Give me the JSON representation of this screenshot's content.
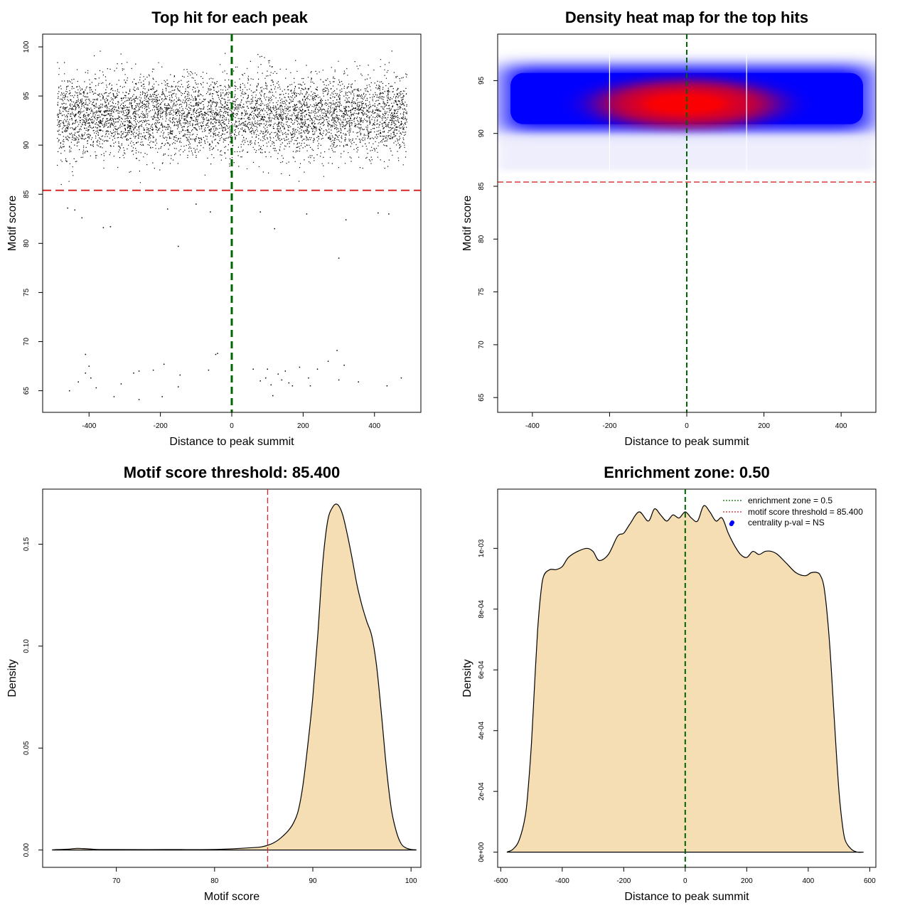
{
  "colors": {
    "threshold_red": "#d62728",
    "zone_green": "#006400",
    "fill_wheat": "#f5deb3",
    "heat_blue": "#0000ff",
    "heat_red": "#ff0000",
    "point_blue": "#0000ff",
    "axis": "#000000"
  },
  "chart_data": [
    {
      "type": "scatter",
      "title": "Top hit for each peak",
      "xlabel": "Distance to peak summit",
      "ylabel": "Motif score",
      "xlim": [
        -530,
        530
      ],
      "ylim": [
        62.8,
        101.3
      ],
      "xticks": [
        -400,
        -200,
        0,
        200,
        400
      ],
      "xtick_labels": [
        "-400",
        "-200",
        "0",
        "200",
        "400"
      ],
      "yticks": [
        65,
        70,
        75,
        80,
        85,
        90,
        95,
        100
      ],
      "ytick_labels": [
        "65",
        "70",
        "75",
        "80",
        "85",
        "90",
        "95",
        "100"
      ],
      "threshold_y": 85.4,
      "zone_x": 0,
      "dense_band": {
        "x_range": [
          -490,
          490
        ],
        "y_center": 93,
        "y_sd": 2.0,
        "n": 18000
      },
      "sparse_points": [
        {
          "x": -460,
          "y": 83.6
        },
        {
          "x": -440,
          "y": 83.4
        },
        {
          "x": -420,
          "y": 82.6
        },
        {
          "x": -360,
          "y": 81.6
        },
        {
          "x": -340,
          "y": 81.7
        },
        {
          "x": -150,
          "y": 79.7
        },
        {
          "x": 300,
          "y": 78.5
        },
        {
          "x": -180,
          "y": 83.5
        },
        {
          "x": -100,
          "y": 84.0
        },
        {
          "x": 80,
          "y": 83.2
        },
        {
          "x": 120,
          "y": 81.5
        },
        {
          "x": 210,
          "y": 83.0
        },
        {
          "x": 320,
          "y": 82.4
        },
        {
          "x": 410,
          "y": 83.1
        },
        {
          "x": 440,
          "y": 83.0
        },
        {
          "x": -60,
          "y": 83.2
        },
        {
          "x": -410,
          "y": 68.7
        },
        {
          "x": -400,
          "y": 67.5
        },
        {
          "x": -395,
          "y": 66.3
        },
        {
          "x": -430,
          "y": 65.9
        },
        {
          "x": -410,
          "y": 66.8
        },
        {
          "x": -455,
          "y": 65.0
        },
        {
          "x": -380,
          "y": 65.3
        },
        {
          "x": -330,
          "y": 64.4
        },
        {
          "x": -310,
          "y": 65.7
        },
        {
          "x": -275,
          "y": 66.8
        },
        {
          "x": -260,
          "y": 67.0
        },
        {
          "x": -260,
          "y": 64.1
        },
        {
          "x": -220,
          "y": 67.1
        },
        {
          "x": -190,
          "y": 67.7
        },
        {
          "x": -195,
          "y": 64.4
        },
        {
          "x": -150,
          "y": 65.4
        },
        {
          "x": -145,
          "y": 66.6
        },
        {
          "x": -65,
          "y": 67.1
        },
        {
          "x": -45,
          "y": 68.7
        },
        {
          "x": -40,
          "y": 68.8
        },
        {
          "x": 60,
          "y": 67.2
        },
        {
          "x": 80,
          "y": 66.0
        },
        {
          "x": 95,
          "y": 66.3
        },
        {
          "x": 100,
          "y": 67.2
        },
        {
          "x": 110,
          "y": 65.6
        },
        {
          "x": 115,
          "y": 64.5
        },
        {
          "x": 130,
          "y": 66.7
        },
        {
          "x": 140,
          "y": 66.1
        },
        {
          "x": 150,
          "y": 67.0
        },
        {
          "x": 160,
          "y": 65.8
        },
        {
          "x": 170,
          "y": 65.5
        },
        {
          "x": 190,
          "y": 67.4
        },
        {
          "x": 215,
          "y": 66.3
        },
        {
          "x": 220,
          "y": 65.5
        },
        {
          "x": 240,
          "y": 67.2
        },
        {
          "x": 270,
          "y": 68.0
        },
        {
          "x": 295,
          "y": 69.1
        },
        {
          "x": 300,
          "y": 66.1
        },
        {
          "x": 315,
          "y": 67.6
        },
        {
          "x": 355,
          "y": 65.9
        },
        {
          "x": 435,
          "y": 65.5
        },
        {
          "x": 475,
          "y": 66.3
        }
      ]
    },
    {
      "type": "heatmap",
      "title": "Density heat map for the top hits",
      "xlabel": "Distance to peak summit",
      "ylabel": "Motif score",
      "xlim": [
        -490,
        490
      ],
      "ylim": [
        63.6,
        99.4
      ],
      "xticks": [
        -400,
        -200,
        0,
        200,
        400
      ],
      "xtick_labels": [
        "-400",
        "-200",
        "0",
        "200",
        "400"
      ],
      "yticks": [
        65,
        70,
        75,
        80,
        85,
        90,
        95
      ],
      "ytick_labels": [
        "65",
        "70",
        "75",
        "80",
        "85",
        "90",
        "95"
      ],
      "threshold_y": 85.4,
      "zone_x": 0,
      "blue_band": {
        "x_range": [
          -490,
          490
        ],
        "y_range": [
          89.8,
          96.8
        ]
      },
      "red_hotspot": {
        "x_center": 0,
        "x_halfwidth": 230,
        "y_center": 92.8,
        "y_halfwidth": 2.2
      },
      "white_lines_x": [
        -200,
        155
      ]
    },
    {
      "type": "area",
      "title": "Motif score threshold: 85.400",
      "xlabel": "Motif score",
      "ylabel": "Density",
      "xlim": [
        62.5,
        101.0
      ],
      "ylim": [
        -0.0085,
        0.177
      ],
      "xticks": [
        70,
        80,
        90,
        100
      ],
      "xtick_labels": [
        "70",
        "80",
        "90",
        "100"
      ],
      "yticks": [
        0.0,
        0.05,
        0.1,
        0.15
      ],
      "ytick_labels": [
        "0.00",
        "0.05",
        "0.10",
        "0.15"
      ],
      "threshold_x": 85.4,
      "x": [
        63.5,
        64,
        65,
        66,
        67,
        68,
        70,
        75,
        80,
        84,
        85,
        85.5,
        86,
        86.5,
        87,
        87.5,
        88,
        88.5,
        89,
        89.5,
        90,
        90.5,
        91,
        91.5,
        92,
        92.5,
        93,
        93.5,
        94,
        94.5,
        95,
        95.5,
        96,
        96.5,
        97,
        97.5,
        98,
        98.5,
        99,
        99.5,
        100,
        100.5
      ],
      "y": [
        0.0001,
        0.0002,
        0.0004,
        0.0008,
        0.0006,
        0.0003,
        0.0002,
        0.0002,
        0.0003,
        0.0012,
        0.0018,
        0.0025,
        0.0035,
        0.005,
        0.007,
        0.0095,
        0.013,
        0.019,
        0.032,
        0.052,
        0.075,
        0.105,
        0.14,
        0.161,
        0.168,
        0.1695,
        0.165,
        0.155,
        0.143,
        0.13,
        0.12,
        0.112,
        0.105,
        0.09,
        0.066,
        0.04,
        0.02,
        0.009,
        0.003,
        0.001,
        0.0003,
        0.0001
      ]
    },
    {
      "type": "area",
      "title": "Enrichment zone: 0.50",
      "xlabel": "Distance to peak summit",
      "ylabel": "Density",
      "xlim": [
        -610,
        620
      ],
      "ylim": [
        -5e-05,
        0.001195
      ],
      "xticks": [
        -600,
        -400,
        -200,
        0,
        200,
        400,
        600
      ],
      "xtick_labels": [
        "-600",
        "-400",
        "-200",
        "0",
        "200",
        "400",
        "600"
      ],
      "yticks": [
        0.0,
        0.0002,
        0.0004,
        0.0006,
        0.0008,
        0.001
      ],
      "ytick_labels": [
        "0e+00",
        "2e-04",
        "4e-04",
        "6e-04",
        "8e-04",
        "1e-03"
      ],
      "zone_x": 0,
      "centrality_point": {
        "x": 150,
        "y": 0.00108
      },
      "x": [
        -580,
        -560,
        -540,
        -520,
        -510,
        -500,
        -490,
        -480,
        -470,
        -460,
        -440,
        -420,
        -400,
        -380,
        -350,
        -320,
        -300,
        -280,
        -250,
        -220,
        -200,
        -180,
        -150,
        -120,
        -100,
        -80,
        -60,
        -40,
        -20,
        0,
        20,
        40,
        60,
        80,
        100,
        120,
        140,
        160,
        180,
        200,
        220,
        240,
        260,
        280,
        300,
        330,
        360,
        390,
        410,
        430,
        440,
        450,
        460,
        470,
        480,
        490,
        500,
        510,
        520,
        540,
        560,
        580
      ],
      "y": [
        0.0,
        1e-05,
        4e-05,
        0.00012,
        0.00022,
        0.00036,
        0.00055,
        0.00073,
        0.00085,
        0.00091,
        0.00093,
        0.00093,
        0.00094,
        0.00097,
        0.00099,
        0.001,
        0.00099,
        0.00096,
        0.00098,
        0.00104,
        0.00105,
        0.00108,
        0.00112,
        0.00109,
        0.00113,
        0.00111,
        0.00109,
        0.00111,
        0.0011,
        0.00112,
        0.0011,
        0.00109,
        0.00114,
        0.00112,
        0.00109,
        0.0011,
        0.00105,
        0.00101,
        0.00098,
        0.00097,
        0.00099,
        0.00098,
        0.00099,
        0.00099,
        0.00098,
        0.00095,
        0.00092,
        0.00091,
        0.00092,
        0.00092,
        0.00091,
        0.00088,
        0.0008,
        0.00068,
        0.00052,
        0.00035,
        0.0002,
        0.0001,
        4e-05,
        1e-05,
        0.0,
        0.0
      ],
      "legend": [
        {
          "label": "enrichment zone = 0.5",
          "style": "dotted-green"
        },
        {
          "label": "motif score threshold = 85.400",
          "style": "dotted-red"
        },
        {
          "label": "centrality p-val = NS",
          "style": "blue-point"
        }
      ]
    }
  ]
}
